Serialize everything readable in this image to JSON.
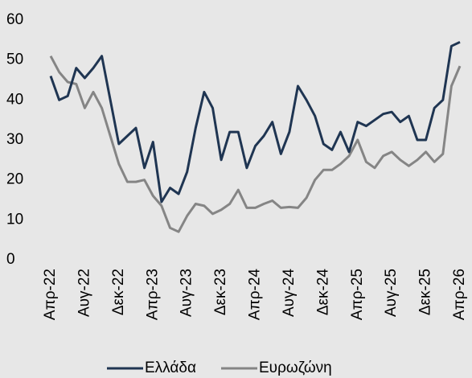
{
  "chart_data": {
    "type": "line",
    "categories": [
      "Απρ-22",
      null,
      null,
      null,
      "Αυγ-22",
      null,
      null,
      null,
      "Δεκ-22",
      null,
      null,
      null,
      "Απρ-23",
      null,
      null,
      null,
      "Αυγ-23",
      null,
      null,
      null,
      "Δεκ-23",
      null,
      null,
      null,
      "Απρ-24",
      null,
      null,
      null,
      "Αυγ-24",
      null,
      null,
      null,
      "Δεκ-24",
      null,
      null,
      null,
      "Απρ-25",
      null,
      null,
      null,
      "Αυγ-25",
      null,
      null,
      null,
      "Δεκ-25",
      null,
      null,
      null,
      "Απρ-26"
    ],
    "series": [
      {
        "name": "Ελλάδα",
        "color": "#1f3552",
        "values": [
          46,
          40,
          41,
          48,
          45.5,
          48,
          51,
          40,
          29,
          31,
          33,
          23,
          29.5,
          14.5,
          18,
          16.5,
          22,
          33,
          42,
          38,
          25,
          32,
          32,
          23,
          28.5,
          31,
          34.5,
          26.5,
          32,
          43.5,
          40,
          36,
          29,
          27.5,
          32,
          27,
          34.5,
          33.5,
          35,
          36.5,
          37,
          34.5,
          36,
          30,
          30,
          38,
          40,
          53.5,
          54.5
        ]
      },
      {
        "name": "Ευρωζώνη",
        "color": "#858585",
        "values": [
          51,
          47,
          44.5,
          44,
          38,
          42,
          38,
          31,
          24,
          19.5,
          19.5,
          20,
          16,
          13.5,
          8,
          7,
          11,
          14,
          13.5,
          11.5,
          12.5,
          14,
          17.5,
          13,
          13,
          14,
          14.8,
          13,
          13.2,
          13,
          15.5,
          20,
          22.5,
          22.5,
          24,
          26,
          30,
          24.5,
          23,
          26,
          27,
          25,
          23.5,
          25,
          27,
          24.5,
          26.5,
          43.5,
          48.5
        ]
      }
    ],
    "ylim": [
      0,
      60
    ],
    "yticks": [
      0,
      10,
      20,
      30,
      40,
      50,
      60
    ],
    "grid": false,
    "legend": "bottom"
  }
}
